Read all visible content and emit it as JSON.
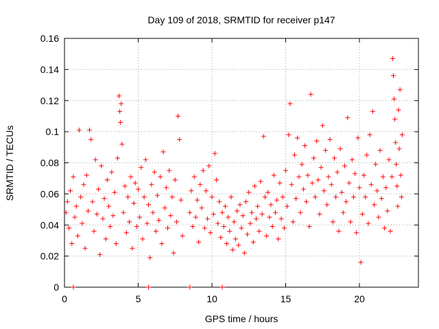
{
  "chart_data": {
    "type": "scatter",
    "title": "Day 109 of 2018, SRMTID for receiver p147",
    "xlabel": "GPS time / hours",
    "ylabel": "SRMTID / TECUs",
    "xlim": [
      0,
      24
    ],
    "ylim": [
      0,
      0.16
    ],
    "grid": true,
    "xticks": [
      0,
      5,
      10,
      15,
      20
    ],
    "xtick_labels": [
      "0",
      "5",
      "10",
      "15",
      "20"
    ],
    "yticks": [
      0,
      0.02,
      0.04,
      0.06,
      0.08,
      0.1,
      0.12,
      0.14,
      0.16
    ],
    "ytick_labels": [
      "0",
      "0.02",
      "0.04",
      "0.06",
      "0.08",
      "0.1",
      "0.12",
      "0.14",
      "0.16"
    ],
    "marker": "+",
    "color": "#ff0000",
    "series": [
      {
        "name": "SRMTID",
        "points": [
          [
            0.1,
            0.048
          ],
          [
            0.2,
            0.055
          ],
          [
            0.3,
            0.038
          ],
          [
            0.4,
            0.062
          ],
          [
            0.5,
            0.028
          ],
          [
            0.6,
            0.071
          ],
          [
            0.7,
            0.045
          ],
          [
            0.8,
            0.052
          ],
          [
            0.9,
            0.033
          ],
          [
            1.0,
            0.101
          ],
          [
            1.1,
            0.058
          ],
          [
            1.2,
            0.041
          ],
          [
            1.3,
            0.066
          ],
          [
            1.4,
            0.025
          ],
          [
            1.5,
            0.072
          ],
          [
            1.6,
            0.049
          ],
          [
            1.7,
            0.101
          ],
          [
            1.8,
            0.095
          ],
          [
            1.9,
            0.055
          ],
          [
            2.0,
            0.036
          ],
          [
            2.1,
            0.082
          ],
          [
            2.2,
            0.047
          ],
          [
            2.3,
            0.063
          ],
          [
            2.4,
            0.021
          ],
          [
            2.5,
            0.078
          ],
          [
            2.6,
            0.044
          ],
          [
            2.7,
            0.057
          ],
          [
            2.8,
            0.031
          ],
          [
            2.9,
            0.069
          ],
          [
            3.0,
            0.052
          ],
          [
            3.1,
            0.039
          ],
          [
            3.2,
            0.074
          ],
          [
            3.3,
            0.046
          ],
          [
            3.4,
            0.061
          ],
          [
            3.5,
            0.028
          ],
          [
            3.6,
            0.083
          ],
          [
            3.7,
            0.123
          ],
          [
            3.75,
            0.113
          ],
          [
            3.8,
            0.106
          ],
          [
            3.85,
            0.118
          ],
          [
            3.9,
            0.092
          ],
          [
            4.0,
            0.048
          ],
          [
            4.1,
            0.065
          ],
          [
            4.2,
            0.035
          ],
          [
            4.3,
            0.058
          ],
          [
            4.4,
            0.042
          ],
          [
            4.5,
            0.071
          ],
          [
            4.6,
            0.025
          ],
          [
            4.7,
            0.054
          ],
          [
            4.8,
            0.067
          ],
          [
            4.9,
            0.039
          ],
          [
            5.0,
            0.063
          ],
          [
            5.1,
            0.045
          ],
          [
            5.2,
            0.077
          ],
          [
            5.3,
            0.031
          ],
          [
            5.4,
            0.058
          ],
          [
            5.5,
            0.082
          ],
          [
            5.6,
            0.041
          ],
          [
            5.7,
            0.053
          ],
          [
            5.8,
            0.019
          ],
          [
            5.9,
            0.066
          ],
          [
            6.0,
            0.048
          ],
          [
            6.1,
            0.074
          ],
          [
            6.2,
            0.036
          ],
          [
            6.3,
            0.059
          ],
          [
            6.4,
            0.043
          ],
          [
            6.5,
            0.071
          ],
          [
            6.6,
            0.028
          ],
          [
            6.7,
            0.087
          ],
          [
            6.8,
            0.051
          ],
          [
            6.9,
            0.064
          ],
          [
            7.0,
            0.038
          ],
          [
            7.1,
            0.075
          ],
          [
            7.2,
            0.046
          ],
          [
            7.3,
            0.058
          ],
          [
            7.4,
            0.022
          ],
          [
            7.5,
            0.069
          ],
          [
            7.6,
            0.042
          ],
          [
            7.7,
            0.11
          ],
          [
            7.8,
            0.095
          ],
          [
            7.9,
            0.056
          ],
          [
            8.0,
            0.033
          ],
          [
            8.5,
            0.048
          ],
          [
            8.6,
            0.062
          ],
          [
            8.7,
            0.039
          ],
          [
            8.8,
            0.071
          ],
          [
            8.9,
            0.045
          ],
          [
            9.0,
            0.056
          ],
          [
            9.1,
            0.029
          ],
          [
            9.2,
            0.066
          ],
          [
            9.3,
            0.051
          ],
          [
            9.4,
            0.075
          ],
          [
            9.5,
            0.038
          ],
          [
            9.6,
            0.062
          ],
          [
            9.7,
            0.044
          ],
          [
            9.8,
            0.078
          ],
          [
            9.9,
            0.035
          ],
          [
            10.0,
            0.058
          ],
          [
            10.1,
            0.047
          ],
          [
            10.2,
            0.086
          ],
          [
            10.3,
            0.069
          ],
          [
            10.4,
            0.041
          ],
          [
            10.5,
            0.055
          ],
          [
            10.6,
            0.032
          ],
          [
            10.7,
            0.048
          ],
          [
            10.8,
            0.039
          ],
          [
            10.9,
            0.052
          ],
          [
            11.0,
            0.028
          ],
          [
            11.1,
            0.045
          ],
          [
            11.2,
            0.036
          ],
          [
            11.3,
            0.058
          ],
          [
            11.4,
            0.024
          ],
          [
            11.5,
            0.042
          ],
          [
            11.6,
            0.031
          ],
          [
            11.7,
            0.049
          ],
          [
            11.8,
            0.027
          ],
          [
            11.9,
            0.053
          ],
          [
            12.0,
            0.038
          ],
          [
            12.1,
            0.046
          ],
          [
            12.2,
            0.022
          ],
          [
            12.3,
            0.055
          ],
          [
            12.4,
            0.034
          ],
          [
            12.5,
            0.061
          ],
          [
            12.6,
            0.041
          ],
          [
            12.7,
            0.048
          ],
          [
            12.8,
            0.029
          ],
          [
            12.9,
            0.065
          ],
          [
            13.0,
            0.044
          ],
          [
            13.1,
            0.052
          ],
          [
            13.2,
            0.036
          ],
          [
            13.3,
            0.068
          ],
          [
            13.4,
            0.047
          ],
          [
            13.5,
            0.097
          ],
          [
            13.6,
            0.058
          ],
          [
            13.7,
            0.033
          ],
          [
            13.8,
            0.061
          ],
          [
            13.9,
            0.045
          ],
          [
            14.0,
            0.053
          ],
          [
            14.1,
            0.039
          ],
          [
            14.2,
            0.072
          ],
          [
            14.3,
            0.048
          ],
          [
            14.4,
            0.056
          ],
          [
            14.5,
            0.031
          ],
          [
            14.6,
            0.067
          ],
          [
            14.7,
            0.044
          ],
          [
            14.8,
            0.058
          ],
          [
            14.9,
            0.038
          ],
          [
            15.0,
            0.075
          ],
          [
            15.1,
            0.052
          ],
          [
            15.2,
            0.098
          ],
          [
            15.3,
            0.118
          ],
          [
            15.4,
            0.066
          ],
          [
            15.5,
            0.042
          ],
          [
            15.6,
            0.085
          ],
          [
            15.7,
            0.057
          ],
          [
            15.8,
            0.096
          ],
          [
            15.9,
            0.071
          ],
          [
            16.0,
            0.048
          ],
          [
            16.1,
            0.079
          ],
          [
            16.2,
            0.063
          ],
          [
            16.3,
            0.091
          ],
          [
            16.4,
            0.055
          ],
          [
            16.5,
            0.072
          ],
          [
            16.6,
            0.039
          ],
          [
            16.7,
            0.124
          ],
          [
            16.8,
            0.067
          ],
          [
            16.9,
            0.083
          ],
          [
            17.0,
            0.058
          ],
          [
            17.1,
            0.094
          ],
          [
            17.2,
            0.069
          ],
          [
            17.3,
            0.047
          ],
          [
            17.4,
            0.077
          ],
          [
            17.5,
            0.104
          ],
          [
            17.6,
            0.062
          ],
          [
            17.7,
            0.088
          ],
          [
            17.8,
            0.053
          ],
          [
            17.9,
            0.071
          ],
          [
            18.0,
            0.095
          ],
          [
            18.1,
            0.066
          ],
          [
            18.2,
            0.042
          ],
          [
            18.3,
            0.083
          ],
          [
            18.4,
            0.058
          ],
          [
            18.5,
            0.074
          ],
          [
            18.6,
            0.036
          ],
          [
            18.7,
            0.089
          ],
          [
            18.8,
            0.061
          ],
          [
            18.9,
            0.048
          ],
          [
            19.0,
            0.078
          ],
          [
            19.1,
            0.055
          ],
          [
            19.2,
            0.109
          ],
          [
            19.3,
            0.067
          ],
          [
            19.4,
            0.042
          ],
          [
            19.5,
            0.082
          ],
          [
            19.6,
            0.058
          ],
          [
            19.7,
            0.073
          ],
          [
            19.8,
            0.035
          ],
          [
            19.9,
            0.096
          ],
          [
            20.0,
            0.064
          ],
          [
            20.1,
            0.016
          ],
          [
            20.2,
            0.047
          ],
          [
            20.3,
            0.072
          ],
          [
            20.4,
            0.058
          ],
          [
            20.5,
            0.085
          ],
          [
            20.6,
            0.041
          ],
          [
            20.7,
            0.098
          ],
          [
            20.8,
            0.066
          ],
          [
            20.9,
            0.113
          ],
          [
            21.0,
            0.053
          ],
          [
            21.1,
            0.079
          ],
          [
            21.2,
            0.062
          ],
          [
            21.3,
            0.045
          ],
          [
            21.4,
            0.088
          ],
          [
            21.5,
            0.057
          ],
          [
            21.6,
            0.071
          ],
          [
            21.7,
            0.038
          ],
          [
            21.8,
            0.064
          ],
          [
            21.9,
            0.049
          ],
          [
            22.0,
            0.082
          ],
          [
            22.1,
            0.036
          ],
          [
            22.2,
            0.071
          ],
          [
            22.25,
            0.147
          ],
          [
            22.3,
            0.136
          ],
          [
            22.35,
            0.121
          ],
          [
            22.4,
            0.108
          ],
          [
            22.45,
            0.093
          ],
          [
            22.5,
            0.079
          ],
          [
            22.55,
            0.065
          ],
          [
            22.6,
            0.052
          ],
          [
            22.65,
            0.114
          ],
          [
            22.7,
            0.089
          ],
          [
            22.75,
            0.127
          ],
          [
            22.8,
            0.072
          ],
          [
            22.85,
            0.058
          ],
          [
            22.9,
            0.098
          ]
        ]
      }
    ],
    "zero_markers_x": [
      0.6,
      5.7,
      8.5,
      10.7
    ]
  }
}
